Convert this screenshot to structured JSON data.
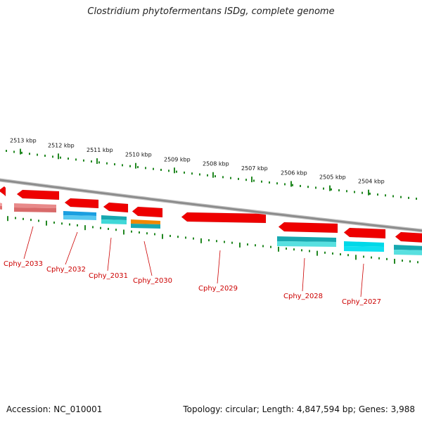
{
  "header": {
    "title": "Clostridium phytofermentans ISDg, complete genome"
  },
  "footer": {
    "accession": "Accession: NC_010001",
    "summary": "Topology: circular; Length: 4,847,594 bp; Genes: 3,988"
  },
  "colors": {
    "forward_gene": "#ee0000",
    "reverse_gene": "#18a8b0",
    "reverse_gene_light": "#00d8e8",
    "reverse_gene_blue": "#1a9ee0",
    "reverse_gene_pink": "#e88a8a",
    "reverse_gene_orange": "#f08800",
    "backbone": "#8a8a8a",
    "tick": "#228822",
    "label": "#cc0000"
  },
  "scale": {
    "unit": "kbp",
    "ticks": [
      "2513 kbp",
      "2512 kbp",
      "2511 kbp",
      "2510 kbp",
      "2509 kbp",
      "2508 kbp",
      "2507 kbp",
      "2506 kbp",
      "2505 kbp",
      "2504 kbp"
    ]
  },
  "genes": [
    {
      "name": "Cphy_2033",
      "strand": "-"
    },
    {
      "name": "Cphy_2032",
      "strand": "-"
    },
    {
      "name": "Cphy_2031",
      "strand": "-"
    },
    {
      "name": "Cphy_2030",
      "strand": "-"
    },
    {
      "name": "Cphy_2029",
      "strand": "+"
    },
    {
      "name": "Cphy_2028",
      "strand": "-"
    },
    {
      "name": "Cphy_2027",
      "strand": "-"
    }
  ]
}
